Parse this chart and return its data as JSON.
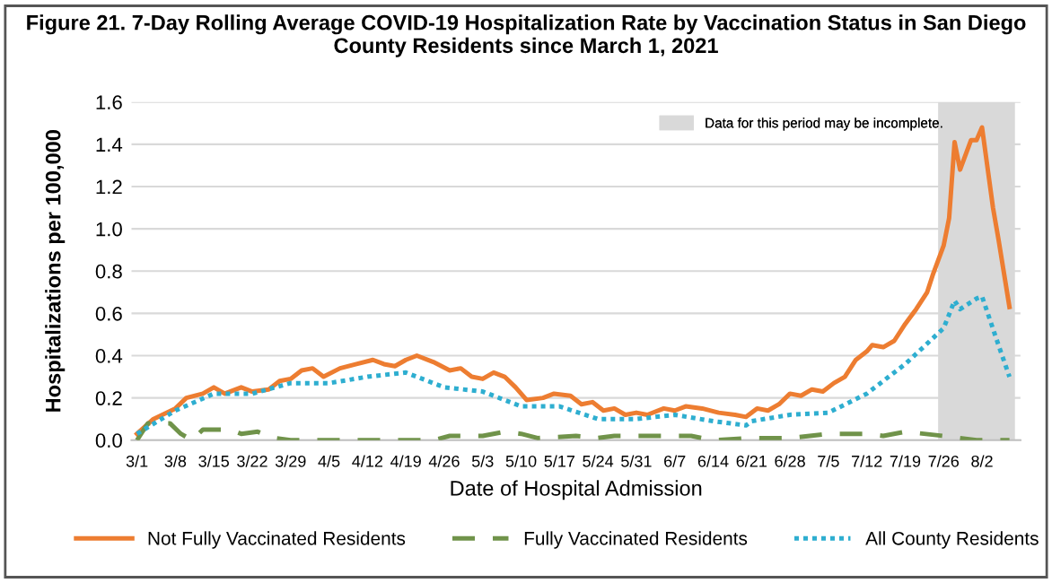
{
  "chart_data": {
    "type": "line",
    "title": "Figure 21. 7-Day Rolling Average COVID-19 Hospitalization Rate by Vaccination Status in San Diego County Residents since March 1, 2021",
    "xlabel": "Date of Hospital Admission",
    "ylabel": "Hospitalizations per 100,000",
    "series": [
      {
        "name": "Not Fully Vaccinated Residents",
        "color": "#ed7d31",
        "line_style": "solid",
        "x": [
          "2021-03-01",
          "2021-03-04",
          "2021-03-08",
          "2021-03-10",
          "2021-03-13",
          "2021-03-15",
          "2021-03-17",
          "2021-03-20",
          "2021-03-22",
          "2021-03-25",
          "2021-03-27",
          "2021-03-29",
          "2021-03-31",
          "2021-04-02",
          "2021-04-04",
          "2021-04-07",
          "2021-04-10",
          "2021-04-13",
          "2021-04-15",
          "2021-04-17",
          "2021-04-19",
          "2021-04-21",
          "2021-04-24",
          "2021-04-27",
          "2021-04-29",
          "2021-05-01",
          "2021-05-03",
          "2021-05-05",
          "2021-05-07",
          "2021-05-09",
          "2021-05-11",
          "2021-05-14",
          "2021-05-16",
          "2021-05-19",
          "2021-05-21",
          "2021-05-23",
          "2021-05-25",
          "2021-05-27",
          "2021-05-29",
          "2021-05-31",
          "2021-06-02",
          "2021-06-05",
          "2021-06-07",
          "2021-06-09",
          "2021-06-12",
          "2021-06-15",
          "2021-06-18",
          "2021-06-20",
          "2021-06-22",
          "2021-06-24",
          "2021-06-26",
          "2021-06-28",
          "2021-06-30",
          "2021-07-02",
          "2021-07-04",
          "2021-07-06",
          "2021-07-08",
          "2021-07-10",
          "2021-07-12",
          "2021-07-13",
          "2021-07-15",
          "2021-07-17",
          "2021-07-19",
          "2021-07-21",
          "2021-07-23",
          "2021-07-24",
          "2021-07-26",
          "2021-07-27",
          "2021-07-28",
          "2021-07-29",
          "2021-07-31",
          "2021-08-01",
          "2021-08-02",
          "2021-08-04",
          "2021-08-05",
          "2021-08-07"
        ],
        "values": [
          0.03,
          0.1,
          0.15,
          0.2,
          0.22,
          0.25,
          0.22,
          0.25,
          0.23,
          0.24,
          0.28,
          0.29,
          0.33,
          0.34,
          0.3,
          0.34,
          0.36,
          0.38,
          0.36,
          0.35,
          0.38,
          0.4,
          0.37,
          0.33,
          0.34,
          0.3,
          0.29,
          0.32,
          0.3,
          0.25,
          0.19,
          0.2,
          0.22,
          0.21,
          0.17,
          0.18,
          0.14,
          0.15,
          0.12,
          0.13,
          0.12,
          0.15,
          0.14,
          0.16,
          0.15,
          0.13,
          0.12,
          0.11,
          0.15,
          0.14,
          0.17,
          0.22,
          0.21,
          0.24,
          0.23,
          0.27,
          0.3,
          0.38,
          0.42,
          0.45,
          0.44,
          0.47,
          0.55,
          0.62,
          0.7,
          0.78,
          0.92,
          1.05,
          1.41,
          1.28,
          1.42,
          1.42,
          1.48,
          1.1,
          0.95,
          0.63
        ]
      },
      {
        "name": "Fully Vaccinated Residents",
        "color": "#70934a",
        "line_style": "dashed",
        "x": [
          "2021-03-01",
          "2021-03-03",
          "2021-03-07",
          "2021-03-09",
          "2021-03-11",
          "2021-03-13",
          "2021-03-18",
          "2021-03-20",
          "2021-03-23",
          "2021-03-26",
          "2021-03-29",
          "2021-04-24",
          "2021-04-27",
          "2021-05-03",
          "2021-05-07",
          "2021-05-10",
          "2021-05-13",
          "2021-05-20",
          "2021-05-24",
          "2021-05-27",
          "2021-06-05",
          "2021-06-10",
          "2021-06-14",
          "2021-06-21",
          "2021-06-28",
          "2021-07-05",
          "2021-07-12",
          "2021-07-15",
          "2021-07-19",
          "2021-07-26",
          "2021-08-01",
          "2021-08-07"
        ],
        "values": [
          0.0,
          0.08,
          0.08,
          0.03,
          0.0,
          0.05,
          0.05,
          0.03,
          0.04,
          0.01,
          0.0,
          0.0,
          0.02,
          0.02,
          0.04,
          0.03,
          0.01,
          0.02,
          0.01,
          0.02,
          0.02,
          0.02,
          0.0,
          0.01,
          0.01,
          0.03,
          0.03,
          0.02,
          0.04,
          0.02,
          0.0,
          0.0
        ]
      },
      {
        "name": "All County Residents",
        "color": "#2eaed0",
        "line_style": "dotted",
        "x": [
          "2021-03-01",
          "2021-03-08",
          "2021-03-15",
          "2021-03-22",
          "2021-03-29",
          "2021-04-05",
          "2021-04-12",
          "2021-04-19",
          "2021-04-26",
          "2021-05-03",
          "2021-05-10",
          "2021-05-17",
          "2021-05-24",
          "2021-05-31",
          "2021-06-07",
          "2021-06-14",
          "2021-06-20",
          "2021-06-21",
          "2021-06-28",
          "2021-07-05",
          "2021-07-12",
          "2021-07-19",
          "2021-07-26",
          "2021-07-28",
          "2021-07-29",
          "2021-08-01",
          "2021-08-02",
          "2021-08-05",
          "2021-08-07"
        ],
        "values": [
          0.03,
          0.14,
          0.22,
          0.22,
          0.27,
          0.27,
          0.3,
          0.32,
          0.25,
          0.23,
          0.16,
          0.16,
          0.1,
          0.1,
          0.12,
          0.09,
          0.07,
          0.09,
          0.12,
          0.13,
          0.22,
          0.36,
          0.53,
          0.66,
          0.62,
          0.67,
          0.68,
          0.45,
          0.3
        ]
      }
    ],
    "bands": [
      {
        "axis": "x",
        "from": "2021-07-25",
        "to": "2021-08-08",
        "label": "Data for this period may be incomplete.",
        "color": "#d9d9d9"
      }
    ],
    "xlim": [
      "2021-02-28",
      "2021-08-09"
    ],
    "xticks": [
      {
        "value": "2021-03-01",
        "label": "3/1"
      },
      {
        "value": "2021-03-08",
        "label": "3/8"
      },
      {
        "value": "2021-03-15",
        "label": "3/15"
      },
      {
        "value": "2021-03-22",
        "label": "3/22"
      },
      {
        "value": "2021-03-29",
        "label": "3/29"
      },
      {
        "value": "2021-04-05",
        "label": "4/5"
      },
      {
        "value": "2021-04-12",
        "label": "4/12"
      },
      {
        "value": "2021-04-19",
        "label": "4/19"
      },
      {
        "value": "2021-04-26",
        "label": "4/26"
      },
      {
        "value": "2021-05-03",
        "label": "5/3"
      },
      {
        "value": "2021-05-10",
        "label": "5/10"
      },
      {
        "value": "2021-05-17",
        "label": "5/17"
      },
      {
        "value": "2021-05-24",
        "label": "5/24"
      },
      {
        "value": "2021-05-31",
        "label": "5/31"
      },
      {
        "value": "2021-06-07",
        "label": "6/7"
      },
      {
        "value": "2021-06-14",
        "label": "6/14"
      },
      {
        "value": "2021-06-21",
        "label": "6/21"
      },
      {
        "value": "2021-06-28",
        "label": "6/28"
      },
      {
        "value": "2021-07-05",
        "label": "7/5"
      },
      {
        "value": "2021-07-12",
        "label": "7/12"
      },
      {
        "value": "2021-07-19",
        "label": "7/19"
      },
      {
        "value": "2021-07-26",
        "label": "7/26"
      },
      {
        "value": "2021-08-02",
        "label": "8/2"
      }
    ],
    "ylim": [
      0,
      1.6
    ],
    "yticks": [
      {
        "value": 0,
        "label": "0.0"
      },
      {
        "value": 0.2,
        "label": "0.2"
      },
      {
        "value": 0.4,
        "label": "0.4"
      },
      {
        "value": 0.6,
        "label": "0.6"
      },
      {
        "value": 0.8,
        "label": "0.8"
      },
      {
        "value": 1.0,
        "label": "1.0"
      },
      {
        "value": 1.2,
        "label": "1.2"
      },
      {
        "value": 1.4,
        "label": "1.4"
      },
      {
        "value": 1.6,
        "label": "1.6"
      }
    ],
    "grid": "y",
    "legend": "bottom",
    "marker": "none"
  }
}
